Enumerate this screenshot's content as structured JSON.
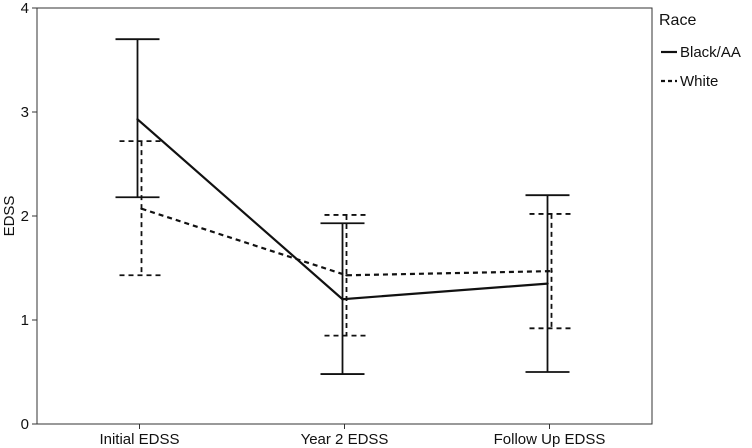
{
  "chart_data": {
    "type": "line",
    "categories": [
      "Initial EDSS",
      "Year 2 EDSS",
      "Follow Up EDSS"
    ],
    "xlabel": "",
    "ylabel": "EDSS",
    "ylim": [
      0,
      4
    ],
    "yticks": [
      0,
      1,
      2,
      3,
      4
    ],
    "grid": false,
    "error_bars": true,
    "legend": {
      "title": "Race",
      "placement": "right"
    },
    "series": [
      {
        "name": "Black/AA",
        "line_style": "solid",
        "values": [
          2.93,
          1.2,
          1.35
        ],
        "error_low": [
          2.18,
          0.48,
          0.5
        ],
        "error_high": [
          3.7,
          1.93,
          2.2
        ]
      },
      {
        "name": "White",
        "line_style": "dashed",
        "values": [
          2.07,
          1.43,
          1.47
        ],
        "error_low": [
          1.43,
          0.85,
          0.92
        ],
        "error_high": [
          2.72,
          2.01,
          2.02
        ]
      }
    ]
  }
}
